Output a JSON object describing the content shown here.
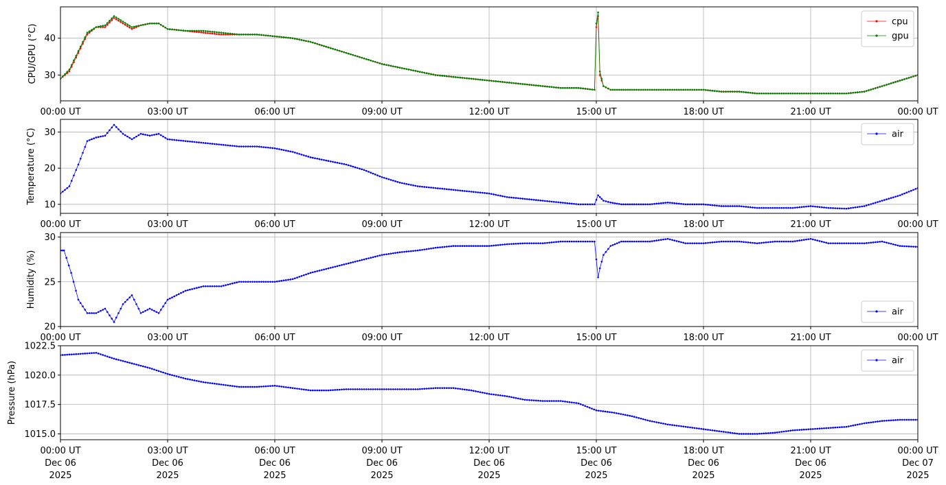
{
  "chart_data": [
    {
      "type": "line",
      "ylabel": "CPU/GPU (°C)",
      "ylim": [
        23,
        48.5
      ],
      "yticks": [
        30,
        40
      ],
      "xlim": [
        0,
        24
      ],
      "xticks": [
        0,
        3,
        6,
        9,
        12,
        15,
        18,
        21,
        24
      ],
      "xtick_labels": [
        "00:00 UT",
        "03:00 UT",
        "06:00 UT",
        "09:00 UT",
        "12:00 UT",
        "15:00 UT",
        "18:00 UT",
        "21:00 UT",
        "00:00 UT"
      ],
      "grid": true,
      "legend_position": "top-right",
      "series": [
        {
          "name": "cpu",
          "color": "#ff0000",
          "x": [
            0,
            0.25,
            0.5,
            0.75,
            1.0,
            1.25,
            1.5,
            1.75,
            2.0,
            2.25,
            2.5,
            2.75,
            3.0,
            3.5,
            4.0,
            4.5,
            5.0,
            5.5,
            6.0,
            6.5,
            7.0,
            7.5,
            8.0,
            8.5,
            9.0,
            9.5,
            10.0,
            10.5,
            11.0,
            11.5,
            12.0,
            12.5,
            13.0,
            13.5,
            14.0,
            14.5,
            14.95,
            15.0,
            15.05,
            15.1,
            15.2,
            15.4,
            15.7,
            16.0,
            16.5,
            17.0,
            17.5,
            18.0,
            18.5,
            19.0,
            19.5,
            20.0,
            20.5,
            21.0,
            21.5,
            22.0,
            22.5,
            23.0,
            23.5,
            24.0
          ],
          "values": [
            29,
            31,
            36,
            41,
            43,
            43,
            45.5,
            44,
            42.5,
            43.5,
            44,
            44,
            42.5,
            42,
            41.5,
            41,
            41,
            41,
            40.5,
            40,
            39,
            37.5,
            36,
            34.5,
            33,
            32,
            31,
            30,
            29.5,
            29,
            28.5,
            28,
            27.5,
            27,
            26.5,
            26.5,
            26,
            43,
            46,
            30,
            27,
            26,
            26,
            26,
            26,
            26,
            26,
            26,
            25.5,
            25.5,
            25,
            25,
            25,
            25,
            25,
            25,
            25.5,
            27,
            28.5,
            30
          ]
        },
        {
          "name": "gpu",
          "color": "#008000",
          "x": [
            0,
            0.25,
            0.5,
            0.75,
            1.0,
            1.25,
            1.5,
            1.75,
            2.0,
            2.25,
            2.5,
            2.75,
            3.0,
            3.5,
            4.0,
            4.5,
            5.0,
            5.5,
            6.0,
            6.5,
            7.0,
            7.5,
            8.0,
            8.5,
            9.0,
            9.5,
            10.0,
            10.5,
            11.0,
            11.5,
            12.0,
            12.5,
            13.0,
            13.5,
            14.0,
            14.5,
            14.95,
            15.0,
            15.05,
            15.1,
            15.2,
            15.4,
            15.7,
            16.0,
            16.5,
            17.0,
            17.5,
            18.0,
            18.5,
            19.0,
            19.5,
            20.0,
            20.5,
            21.0,
            21.5,
            22.0,
            22.5,
            23.0,
            23.5,
            24.0
          ],
          "values": [
            29,
            31.5,
            36.5,
            41.5,
            43,
            43.5,
            46,
            44.5,
            43,
            43.5,
            44,
            44,
            42.5,
            42,
            42,
            41.5,
            41,
            41,
            40.5,
            40,
            39,
            37.5,
            36,
            34.5,
            33,
            32,
            31,
            30,
            29.5,
            29,
            28.5,
            28,
            27.5,
            27,
            26.5,
            26.5,
            26,
            44,
            47,
            31,
            27,
            26,
            26,
            26,
            26,
            26,
            26,
            26,
            25.5,
            25.5,
            25,
            25,
            25,
            25,
            25,
            25,
            25.5,
            27,
            28.5,
            30
          ]
        }
      ]
    },
    {
      "type": "line",
      "ylabel": "Temperature (°C)",
      "ylim": [
        7.5,
        33.5
      ],
      "yticks": [
        10,
        20,
        30
      ],
      "xlim": [
        0,
        24
      ],
      "xticks": [
        0,
        3,
        6,
        9,
        12,
        15,
        18,
        21,
        24
      ],
      "xtick_labels": [
        "00:00 UT",
        "03:00 UT",
        "06:00 UT",
        "09:00 UT",
        "12:00 UT",
        "15:00 UT",
        "18:00 UT",
        "21:00 UT",
        "00:00 UT"
      ],
      "grid": true,
      "legend_position": "top-right",
      "series": [
        {
          "name": "air",
          "color": "#0000ff",
          "x": [
            0,
            0.25,
            0.5,
            0.75,
            1.0,
            1.25,
            1.5,
            1.75,
            2.0,
            2.25,
            2.5,
            2.75,
            3.0,
            3.5,
            4.0,
            4.5,
            5.0,
            5.5,
            6.0,
            6.5,
            7.0,
            7.5,
            8.0,
            8.5,
            9.0,
            9.5,
            10.0,
            10.5,
            11.0,
            11.5,
            12.0,
            12.5,
            13.0,
            13.5,
            14.0,
            14.5,
            14.95,
            15.05,
            15.1,
            15.2,
            15.4,
            15.7,
            16.0,
            16.5,
            17.0,
            17.5,
            18.0,
            18.5,
            19.0,
            19.5,
            20.0,
            20.5,
            21.0,
            21.5,
            22.0,
            22.5,
            23.0,
            23.5,
            24.0
          ],
          "values": [
            13,
            15,
            21,
            27.5,
            28.5,
            29,
            32,
            29.5,
            28,
            29.5,
            29,
            29.5,
            28,
            27.5,
            27,
            26.5,
            26,
            26,
            25.5,
            24.5,
            23,
            22,
            21,
            19.5,
            17.5,
            16,
            15,
            14.5,
            14,
            13.5,
            13,
            12,
            11.5,
            11,
            10.5,
            10,
            10,
            12.5,
            12,
            11,
            10.5,
            10,
            10,
            10,
            10.5,
            10,
            10,
            9.5,
            9.5,
            9,
            9,
            9,
            9.5,
            9,
            8.8,
            9.5,
            11,
            12.5,
            14.5
          ]
        }
      ]
    },
    {
      "type": "line",
      "ylabel": "Humidity (%)",
      "ylim": [
        20,
        30.5
      ],
      "yticks": [
        20,
        25,
        30
      ],
      "xlim": [
        0,
        24
      ],
      "xticks": [
        0,
        3,
        6,
        9,
        12,
        15,
        18,
        21,
        24
      ],
      "xtick_labels": [
        "00:00 UT",
        "03:00 UT",
        "06:00 UT",
        "09:00 UT",
        "12:00 UT",
        "15:00 UT",
        "18:00 UT",
        "21:00 UT",
        "00:00 UT"
      ],
      "grid": true,
      "legend_position": "bottom-right",
      "series": [
        {
          "name": "air",
          "color": "#0000ff",
          "x": [
            0,
            0.1,
            0.3,
            0.5,
            0.75,
            1.0,
            1.25,
            1.5,
            1.75,
            2.0,
            2.25,
            2.5,
            2.75,
            3.0,
            3.5,
            4.0,
            4.5,
            5.0,
            5.5,
            6.0,
            6.5,
            7.0,
            7.5,
            8.0,
            8.5,
            9.0,
            9.5,
            10.0,
            10.5,
            11.0,
            11.5,
            12.0,
            12.5,
            13.0,
            13.5,
            14.0,
            14.5,
            14.95,
            15.05,
            15.1,
            15.2,
            15.4,
            15.7,
            16.0,
            16.5,
            17.0,
            17.5,
            18.0,
            18.5,
            19.0,
            19.5,
            20.0,
            20.5,
            21.0,
            21.5,
            22.0,
            22.5,
            23.0,
            23.5,
            24.0
          ],
          "values": [
            28.5,
            28.5,
            26,
            23,
            21.5,
            21.5,
            22,
            20.5,
            22.5,
            23.5,
            21.5,
            22,
            21.5,
            23,
            24,
            24.5,
            24.5,
            25,
            25,
            25,
            25.3,
            26,
            26.5,
            27,
            27.5,
            28,
            28.3,
            28.5,
            28.8,
            29,
            29,
            29,
            29.2,
            29.3,
            29.3,
            29.5,
            29.5,
            29.5,
            25.5,
            26.5,
            28,
            29,
            29.5,
            29.5,
            29.5,
            29.8,
            29.3,
            29.3,
            29.5,
            29.5,
            29.3,
            29.5,
            29.5,
            29.8,
            29.3,
            29.3,
            29.3,
            29.5,
            29,
            28.9
          ]
        }
      ]
    },
    {
      "type": "line",
      "ylabel": "Pressure (hPa)",
      "ylim": [
        1014.5,
        1022.5
      ],
      "yticks": [
        1015.0,
        1017.5,
        1020.0,
        1022.5
      ],
      "ytick_labels": [
        "1015.0",
        "1017.5",
        "1020.0",
        "1022.5"
      ],
      "xlim": [
        0,
        24
      ],
      "xticks": [
        0,
        3,
        6,
        9,
        12,
        15,
        18,
        21,
        24
      ],
      "xtick_labels": [
        "00:00 UT",
        "03:00 UT",
        "06:00 UT",
        "09:00 UT",
        "12:00 UT",
        "15:00 UT",
        "18:00 UT",
        "21:00 UT",
        "00:00 UT"
      ],
      "xtick_date_lines": [
        "Dec 06",
        "Dec 06",
        "Dec 06",
        "Dec 06",
        "Dec 06",
        "Dec 06",
        "Dec 06",
        "Dec 06",
        "Dec 07"
      ],
      "xtick_year_lines": [
        "2025",
        "2025",
        "2025",
        "2025",
        "2025",
        "2025",
        "2025",
        "2025",
        "2025"
      ],
      "grid": true,
      "legend_position": "top-right",
      "series": [
        {
          "name": "air",
          "color": "#0000ff",
          "x": [
            0,
            0.5,
            1.0,
            1.5,
            2.0,
            2.5,
            3.0,
            3.5,
            4.0,
            4.5,
            5.0,
            5.5,
            6.0,
            6.5,
            7.0,
            7.5,
            8.0,
            8.5,
            9.0,
            9.5,
            10.0,
            10.5,
            11.0,
            11.5,
            12.0,
            12.5,
            13.0,
            13.5,
            14.0,
            14.5,
            15.0,
            15.5,
            16.0,
            16.5,
            17.0,
            17.5,
            18.0,
            18.5,
            19.0,
            19.5,
            20.0,
            20.5,
            21.0,
            21.5,
            22.0,
            22.5,
            23.0,
            23.5,
            24.0
          ],
          "values": [
            1021.7,
            1021.8,
            1021.9,
            1021.4,
            1021,
            1020.6,
            1020.1,
            1019.7,
            1019.4,
            1019.2,
            1019,
            1019,
            1019.1,
            1018.9,
            1018.7,
            1018.7,
            1018.8,
            1018.8,
            1018.8,
            1018.8,
            1018.8,
            1018.9,
            1018.9,
            1018.7,
            1018.4,
            1018.2,
            1017.9,
            1017.8,
            1017.8,
            1017.6,
            1017,
            1016.8,
            1016.5,
            1016.1,
            1015.8,
            1015.6,
            1015.4,
            1015.2,
            1015,
            1015,
            1015.1,
            1015.3,
            1015.4,
            1015.5,
            1015.6,
            1015.9,
            1016.1,
            1016.2,
            1016.2
          ]
        }
      ]
    }
  ]
}
